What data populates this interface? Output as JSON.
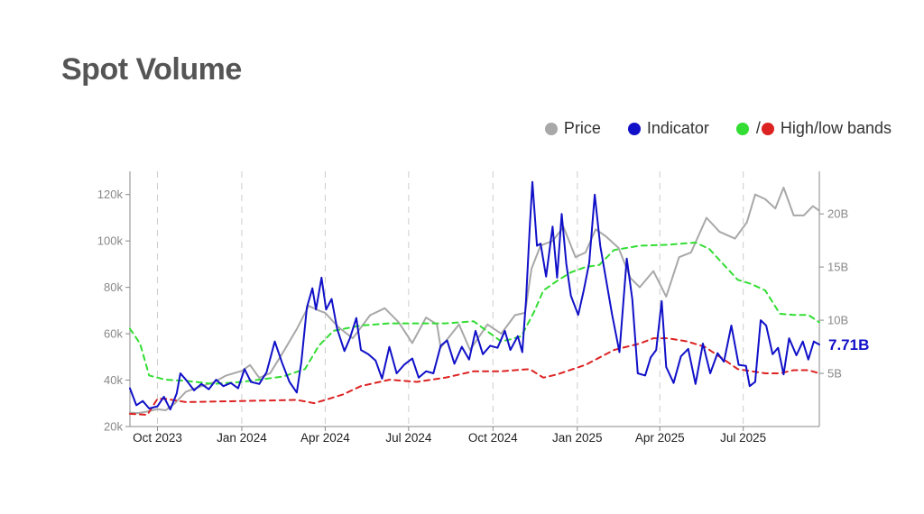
{
  "title": "Spot Volume",
  "legend": {
    "price_label": "Price",
    "indicator_label": "Indicator",
    "bands_label": "High/low bands",
    "bands_separator": "/"
  },
  "colors": {
    "title": "#555555",
    "price": "#a8a8a8",
    "indicator": "#1010c8",
    "high_band": "#33dd33",
    "low_band": "#dd2222",
    "grid": "#cccccc",
    "axis": "#888888"
  },
  "chart_data": {
    "type": "line",
    "x_ticks": [
      "Oct 2023",
      "Jan 2024",
      "Apr 2024",
      "Jul 2024",
      "Oct 2024",
      "Jan 2025",
      "Apr 2025",
      "Jul 2025"
    ],
    "x_tick_dates": [
      "2023-10-01",
      "2024-01-01",
      "2024-04-01",
      "2024-07-01",
      "2024-10-01",
      "2025-01-01",
      "2025-04-01",
      "2025-07-01"
    ],
    "x_range": [
      "2023-09-01",
      "2025-09-22"
    ],
    "left_axis": {
      "ticks": [
        "20k",
        "40k",
        "60k",
        "80k",
        "100k",
        "120k"
      ],
      "tick_values": [
        20000,
        40000,
        60000,
        80000,
        100000,
        120000
      ],
      "range": [
        20000,
        130000
      ]
    },
    "right_axis": {
      "ticks": [
        "5B",
        "10B",
        "15B",
        "20B"
      ],
      "tick_values": [
        5,
        10,
        15,
        20
      ],
      "range": [
        0,
        24
      ]
    },
    "grid": "vertical dashed",
    "legend_position": "top-right",
    "end_label": "7.71B",
    "series": [
      {
        "name": "Price",
        "axis": "left",
        "points": [
          [
            "2023-09-01",
            26000
          ],
          [
            "2023-09-10",
            25800
          ],
          [
            "2023-09-20",
            26500
          ],
          [
            "2023-10-01",
            27500
          ],
          [
            "2023-10-10",
            27000
          ],
          [
            "2023-10-20",
            30000
          ],
          [
            "2023-11-01",
            35000
          ],
          [
            "2023-11-15",
            37000
          ],
          [
            "2023-12-01",
            39000
          ],
          [
            "2023-12-15",
            42000
          ],
          [
            "2024-01-01",
            44000
          ],
          [
            "2024-01-10",
            46500
          ],
          [
            "2024-01-20",
            41000
          ],
          [
            "2024-02-01",
            43000
          ],
          [
            "2024-02-15",
            52000
          ],
          [
            "2024-03-01",
            62000
          ],
          [
            "2024-03-14",
            72000
          ],
          [
            "2024-03-25",
            70000
          ],
          [
            "2024-04-01",
            69000
          ],
          [
            "2024-04-15",
            63000
          ],
          [
            "2024-05-01",
            58000
          ],
          [
            "2024-05-20",
            68000
          ],
          [
            "2024-06-05",
            71000
          ],
          [
            "2024-06-20",
            65000
          ],
          [
            "2024-07-05",
            56000
          ],
          [
            "2024-07-20",
            67000
          ],
          [
            "2024-08-01",
            64000
          ],
          [
            "2024-08-05",
            54000
          ],
          [
            "2024-08-25",
            64000
          ],
          [
            "2024-09-06",
            53000
          ],
          [
            "2024-09-25",
            64000
          ],
          [
            "2024-10-10",
            60000
          ],
          [
            "2024-10-25",
            68000
          ],
          [
            "2024-11-05",
            69000
          ],
          [
            "2024-11-12",
            88000
          ],
          [
            "2024-11-22",
            98000
          ],
          [
            "2024-12-05",
            100000
          ],
          [
            "2024-12-17",
            106000
          ],
          [
            "2024-12-30",
            93000
          ],
          [
            "2025-01-10",
            95000
          ],
          [
            "2025-01-21",
            105000
          ],
          [
            "2025-02-01",
            102000
          ],
          [
            "2025-02-15",
            97000
          ],
          [
            "2025-02-28",
            84000
          ],
          [
            "2025-03-10",
            80000
          ],
          [
            "2025-03-25",
            87000
          ],
          [
            "2025-04-08",
            76000
          ],
          [
            "2025-04-22",
            93000
          ],
          [
            "2025-05-05",
            95000
          ],
          [
            "2025-05-22",
            110000
          ],
          [
            "2025-06-05",
            104000
          ],
          [
            "2025-06-22",
            101000
          ],
          [
            "2025-07-05",
            108000
          ],
          [
            "2025-07-14",
            120000
          ],
          [
            "2025-07-25",
            118000
          ],
          [
            "2025-08-05",
            114000
          ],
          [
            "2025-08-14",
            123000
          ],
          [
            "2025-08-25",
            111000
          ],
          [
            "2025-09-05",
            111000
          ],
          [
            "2025-09-15",
            115000
          ],
          [
            "2025-09-22",
            113000
          ]
        ]
      },
      {
        "name": "Indicator",
        "axis": "right",
        "points": [
          [
            "2023-09-01",
            3.6
          ],
          [
            "2023-09-08",
            2.0
          ],
          [
            "2023-09-15",
            2.4
          ],
          [
            "2023-09-22",
            1.7
          ],
          [
            "2023-10-01",
            1.9
          ],
          [
            "2023-10-08",
            2.8
          ],
          [
            "2023-10-15",
            1.6
          ],
          [
            "2023-10-22",
            3.1
          ],
          [
            "2023-10-26",
            5.0
          ],
          [
            "2023-11-02",
            4.3
          ],
          [
            "2023-11-10",
            3.4
          ],
          [
            "2023-11-18",
            4.0
          ],
          [
            "2023-11-26",
            3.5
          ],
          [
            "2023-12-04",
            4.4
          ],
          [
            "2023-12-12",
            3.8
          ],
          [
            "2023-12-20",
            4.1
          ],
          [
            "2023-12-28",
            3.6
          ],
          [
            "2024-01-04",
            5.4
          ],
          [
            "2024-01-11",
            4.2
          ],
          [
            "2024-01-20",
            4.0
          ],
          [
            "2024-01-28",
            5.1
          ],
          [
            "2024-02-06",
            8.0
          ],
          [
            "2024-02-14",
            6.0
          ],
          [
            "2024-02-22",
            4.2
          ],
          [
            "2024-03-01",
            3.2
          ],
          [
            "2024-03-06",
            6.1
          ],
          [
            "2024-03-12",
            11.2
          ],
          [
            "2024-03-18",
            13.0
          ],
          [
            "2024-03-22",
            11.0
          ],
          [
            "2024-03-28",
            14.0
          ],
          [
            "2024-04-02",
            11.0
          ],
          [
            "2024-04-08",
            12.0
          ],
          [
            "2024-04-14",
            9.2
          ],
          [
            "2024-04-22",
            7.1
          ],
          [
            "2024-04-28",
            8.3
          ],
          [
            "2024-05-05",
            10.2
          ],
          [
            "2024-05-10",
            7.2
          ],
          [
            "2024-05-18",
            6.8
          ],
          [
            "2024-05-26",
            6.2
          ],
          [
            "2024-06-02",
            4.5
          ],
          [
            "2024-06-10",
            7.5
          ],
          [
            "2024-06-18",
            5.0
          ],
          [
            "2024-06-26",
            5.8
          ],
          [
            "2024-07-05",
            6.4
          ],
          [
            "2024-07-12",
            4.6
          ],
          [
            "2024-07-20",
            5.2
          ],
          [
            "2024-07-28",
            5.0
          ],
          [
            "2024-08-05",
            7.6
          ],
          [
            "2024-08-12",
            8.1
          ],
          [
            "2024-08-20",
            5.9
          ],
          [
            "2024-08-28",
            7.5
          ],
          [
            "2024-09-05",
            6.3
          ],
          [
            "2024-09-12",
            9.0
          ],
          [
            "2024-09-20",
            6.8
          ],
          [
            "2024-09-28",
            7.6
          ],
          [
            "2024-10-06",
            7.4
          ],
          [
            "2024-10-14",
            9.0
          ],
          [
            "2024-10-20",
            7.2
          ],
          [
            "2024-10-28",
            8.5
          ],
          [
            "2024-11-02",
            7.0
          ],
          [
            "2024-11-06",
            11.8
          ],
          [
            "2024-11-10",
            18.6
          ],
          [
            "2024-11-13",
            23.0
          ],
          [
            "2024-11-18",
            17.0
          ],
          [
            "2024-11-22",
            17.2
          ],
          [
            "2024-11-28",
            14.1
          ],
          [
            "2024-12-05",
            18.8
          ],
          [
            "2024-12-10",
            14.0
          ],
          [
            "2024-12-15",
            20.0
          ],
          [
            "2024-12-20",
            15.3
          ],
          [
            "2024-12-25",
            12.3
          ],
          [
            "2025-01-02",
            10.5
          ],
          [
            "2025-01-08",
            12.8
          ],
          [
            "2025-01-14",
            15.4
          ],
          [
            "2025-01-20",
            21.8
          ],
          [
            "2025-01-26",
            17.0
          ],
          [
            "2025-02-02",
            13.5
          ],
          [
            "2025-02-08",
            10.5
          ],
          [
            "2025-02-16",
            7.0
          ],
          [
            "2025-02-24",
            15.8
          ],
          [
            "2025-03-02",
            12.0
          ],
          [
            "2025-03-08",
            5.0
          ],
          [
            "2025-03-16",
            4.8
          ],
          [
            "2025-03-22",
            6.5
          ],
          [
            "2025-03-28",
            7.2
          ],
          [
            "2025-04-03",
            11.8
          ],
          [
            "2025-04-08",
            5.6
          ],
          [
            "2025-04-16",
            4.1
          ],
          [
            "2025-04-24",
            6.6
          ],
          [
            "2025-05-02",
            7.3
          ],
          [
            "2025-05-10",
            4.0
          ],
          [
            "2025-05-18",
            7.8
          ],
          [
            "2025-05-26",
            5.0
          ],
          [
            "2025-06-03",
            6.9
          ],
          [
            "2025-06-10",
            6.1
          ],
          [
            "2025-06-18",
            9.5
          ],
          [
            "2025-06-26",
            5.8
          ],
          [
            "2025-07-04",
            5.7
          ],
          [
            "2025-07-08",
            3.8
          ],
          [
            "2025-07-14",
            4.2
          ],
          [
            "2025-07-20",
            10.0
          ],
          [
            "2025-07-26",
            9.5
          ],
          [
            "2025-08-02",
            6.8
          ],
          [
            "2025-08-08",
            7.4
          ],
          [
            "2025-08-14",
            4.9
          ],
          [
            "2025-08-20",
            8.3
          ],
          [
            "2025-08-28",
            6.7
          ],
          [
            "2025-09-04",
            8.0
          ],
          [
            "2025-09-10",
            6.3
          ],
          [
            "2025-09-16",
            8.0
          ],
          [
            "2025-09-22",
            7.71
          ]
        ]
      },
      {
        "name": "High band",
        "axis": "right",
        "points": [
          [
            "2023-09-01",
            9.2
          ],
          [
            "2023-09-12",
            7.8
          ],
          [
            "2023-09-22",
            4.8
          ],
          [
            "2023-10-10",
            4.4
          ],
          [
            "2023-11-01",
            4.3
          ],
          [
            "2023-12-01",
            4.0
          ],
          [
            "2024-01-01",
            4.2
          ],
          [
            "2024-02-15",
            4.7
          ],
          [
            "2024-03-10",
            5.4
          ],
          [
            "2024-03-25",
            7.6
          ],
          [
            "2024-04-10",
            9.0
          ],
          [
            "2024-05-10",
            9.5
          ],
          [
            "2024-06-10",
            9.7
          ],
          [
            "2024-07-10",
            9.7
          ],
          [
            "2024-08-10",
            9.7
          ],
          [
            "2024-09-10",
            9.9
          ],
          [
            "2024-10-10",
            8.0
          ],
          [
            "2024-10-20",
            8.2
          ],
          [
            "2024-11-01",
            8.5
          ],
          [
            "2024-11-15",
            10.8
          ],
          [
            "2024-11-25",
            12.8
          ],
          [
            "2024-12-10",
            13.7
          ],
          [
            "2024-12-25",
            14.5
          ],
          [
            "2025-01-10",
            15.0
          ],
          [
            "2025-01-25",
            15.2
          ],
          [
            "2025-02-10",
            16.6
          ],
          [
            "2025-03-10",
            17.0
          ],
          [
            "2025-04-10",
            17.1
          ],
          [
            "2025-05-10",
            17.3
          ],
          [
            "2025-05-25",
            16.7
          ],
          [
            "2025-06-10",
            15.2
          ],
          [
            "2025-06-25",
            13.8
          ],
          [
            "2025-07-10",
            13.4
          ],
          [
            "2025-07-25",
            12.8
          ],
          [
            "2025-08-10",
            10.6
          ],
          [
            "2025-08-25",
            10.5
          ],
          [
            "2025-09-10",
            10.5
          ],
          [
            "2025-09-22",
            9.8
          ]
        ]
      },
      {
        "name": "Low band",
        "axis": "right",
        "points": [
          [
            "2023-09-01",
            1.2
          ],
          [
            "2023-09-20",
            1.1
          ],
          [
            "2023-10-01",
            2.6
          ],
          [
            "2023-10-10",
            2.6
          ],
          [
            "2023-11-01",
            2.3
          ],
          [
            "2024-01-01",
            2.4
          ],
          [
            "2024-03-01",
            2.5
          ],
          [
            "2024-03-20",
            2.2
          ],
          [
            "2024-04-01",
            2.5
          ],
          [
            "2024-04-20",
            3.0
          ],
          [
            "2024-05-10",
            3.8
          ],
          [
            "2024-06-10",
            4.4
          ],
          [
            "2024-07-10",
            4.2
          ],
          [
            "2024-08-10",
            4.6
          ],
          [
            "2024-09-10",
            5.2
          ],
          [
            "2024-10-10",
            5.2
          ],
          [
            "2024-11-10",
            5.4
          ],
          [
            "2024-11-25",
            4.6
          ],
          [
            "2024-12-10",
            4.9
          ],
          [
            "2025-01-10",
            5.8
          ],
          [
            "2025-02-10",
            7.2
          ],
          [
            "2025-03-10",
            7.8
          ],
          [
            "2025-03-25",
            8.3
          ],
          [
            "2025-04-10",
            8.3
          ],
          [
            "2025-05-01",
            8.0
          ],
          [
            "2025-05-20",
            7.5
          ],
          [
            "2025-06-10",
            6.3
          ],
          [
            "2025-06-25",
            5.4
          ],
          [
            "2025-07-10",
            5.2
          ],
          [
            "2025-07-25",
            5.0
          ],
          [
            "2025-08-10",
            5.0
          ],
          [
            "2025-08-25",
            5.3
          ],
          [
            "2025-09-10",
            5.3
          ],
          [
            "2025-09-22",
            5.0
          ]
        ]
      }
    ]
  }
}
